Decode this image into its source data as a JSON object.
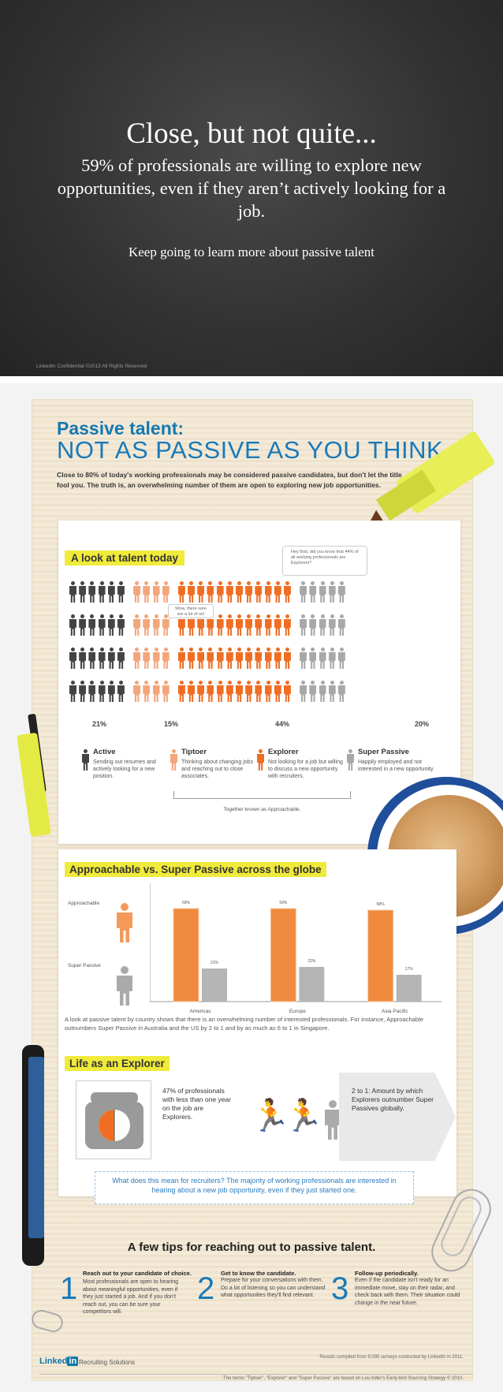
{
  "slide1": {
    "title": "Close, but not quite...",
    "subtitle": "59% of professionals are willing to explore new opportunities, even if they aren’t actively looking for a job.",
    "keep_going": "Keep going to learn more about passive talent",
    "confidential": "LinkedIn Confidential ©2013 All Rights Reserved"
  },
  "infographic": {
    "title_line1": "Passive talent:",
    "title_line2": "NOT AS PASSIVE AS YOU THINK",
    "intro": "Close to 80% of today's working professionals may be considered passive candidates, but don't let the title fool you. The truth is, an overwhelming number of them are open to exploring new job opportunities.",
    "look_label": "A look at talent today",
    "bubble_explorers": "Hey Bob, did you know that 44% of all working professionals are Explorers?",
    "bubble_tiptoe": "Wow, there sure are a lot of us!",
    "percentages": [
      "21%",
      "15%",
      "44%",
      "20%"
    ],
    "segments": [
      {
        "title": "Active",
        "desc": "Sending out resumes and actively looking for a new position."
      },
      {
        "title": "Tiptoer",
        "desc": "Thinking about changing jobs and reaching out to close associates."
      },
      {
        "title": "Explorer",
        "desc": "Not looking for a job but willing to discuss a new opportunity with recruiters."
      },
      {
        "title": "Super Passive",
        "desc": "Happily employed and not interested in a new opportunity."
      }
    ],
    "together": "Together known as Approachable.",
    "globe_label": "Approachable vs. Super Passive across the globe",
    "legend_approachable": "Approachable",
    "legend_super_passive": "Super Passive",
    "globe_desc": "A look at passive talent by country shows that there is an overwhelming number of interested professionals. For instance, Approachable outnumbers Super Passive in Australia and the US by 2 to 1 and by as much as 6 to 1 in Singapore.",
    "life_label": "Life as an Explorer",
    "stat47": "47% of professionals with less than one year on the job are Explorers.",
    "stat21": "2 to 1: Amount by which Explorers outnumber Super Passives globally.",
    "recruiters": "What does this mean for recruiters? The majority of working professionals are interested in hearing about a new job opportunity, even if they just started one.",
    "tips_title": "A few tips for reaching out to passive talent.",
    "tips": [
      {
        "num": "1",
        "head": "Reach out to your candidate of choice.",
        "body": "Most professionals are open to hearing about meaningful opportunities, even if they just started a job. And if you don't reach out, you can be sure your competitors will."
      },
      {
        "num": "2",
        "head": "Get to know the candidate.",
        "body": "Prepare for your conversations with them. Do a lot of listening so you can understand what opportunities they'll find relevant."
      },
      {
        "num": "3",
        "head": "Follow-up periodically.",
        "body": "Even if the candidate isn't ready for an immediate move, stay on their radar, and check back with them. Their situation could change in the near future."
      }
    ],
    "footer_brand": "Linked",
    "footer_in": "in",
    "footer_rs": "Recruiting Solutions",
    "footer_source": "Results compiled from 9,095 surveys conducted by LinkedIn in 2011.",
    "footer_terms": "The terms \"Tiptoer\", \"Explorer\" and \"Super Passive\" are based on Lou Adler's Early-bird Sourcing Strategy © 2010."
  },
  "chart_data": {
    "type": "bar",
    "categories": [
      "Americas",
      "Europe",
      "Asia Pacific"
    ],
    "series": [
      {
        "name": "Approachable",
        "values": [
          59,
          59,
          58
        ]
      },
      {
        "name": "Super Passive",
        "values": [
          21,
          22,
          17
        ]
      }
    ],
    "value_labels": [
      [
        "59%",
        "59%",
        "58%"
      ],
      [
        "21%",
        "22%",
        "17%"
      ]
    ],
    "ylim": [
      0,
      75
    ],
    "colors": [
      "#ef8a3e",
      "#b5b5b5"
    ]
  },
  "population": {
    "counts": {
      "active": 6,
      "tiptoer": 4,
      "explorer": 12,
      "super_passive": 5
    },
    "colors": {
      "active": "#444444",
      "tiptoer": "#f3a67b",
      "explorer": "#ef6e23",
      "super_passive": "#a8a8a8"
    }
  }
}
